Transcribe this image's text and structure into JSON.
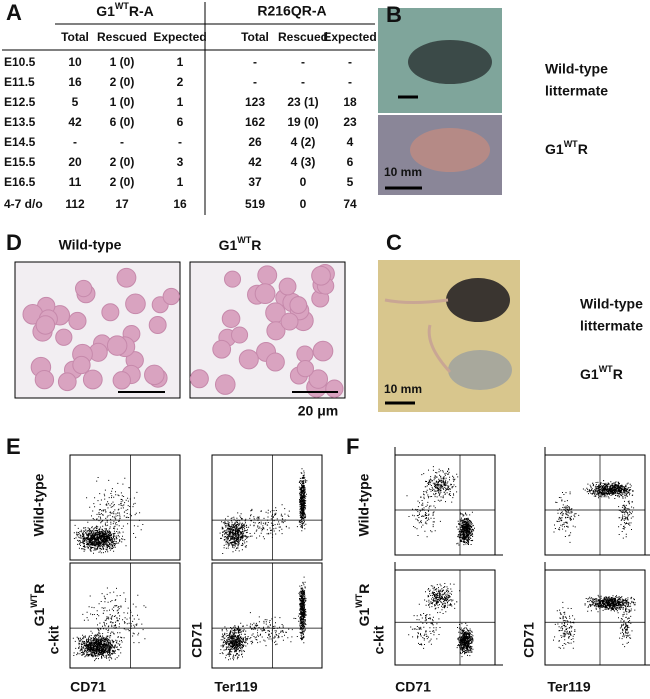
{
  "panel_letters": [
    "A",
    "B",
    "C",
    "D",
    "E",
    "F"
  ],
  "table": {
    "group_1": {
      "base": "G1",
      "sup": "WT",
      "rest": "R-A"
    },
    "group_2": "R216QR-A",
    "columns": [
      "Total",
      "Rescued",
      "Expected",
      "Total",
      "Rescued",
      "Expected"
    ],
    "rows": [
      [
        "E10.5",
        "10",
        "1 (0)",
        "1",
        "-",
        "-",
        "-"
      ],
      [
        "E11.5",
        "16",
        "2 (0)",
        "2",
        "-",
        "-",
        "-"
      ],
      [
        "E12.5",
        "5",
        "1 (0)",
        "1",
        "123",
        "23 (1)",
        "18"
      ],
      [
        "E13.5",
        "42",
        "6 (0)",
        "6",
        "162",
        "19 (0)",
        "23"
      ],
      [
        "E14.5",
        "-",
        "-",
        "-",
        "26",
        "4 (2)",
        "4"
      ],
      [
        "E15.5",
        "20",
        "2 (0)",
        "3",
        "42",
        "4 (3)",
        "6"
      ],
      [
        "E16.5",
        "11",
        "2 (0)",
        "1",
        "37",
        "0",
        "5"
      ],
      [
        "4-7 d/o",
        "112",
        "17",
        "16",
        "519",
        "0",
        "74"
      ]
    ]
  },
  "panel_b": {
    "wild_type": [
      "Wild-type",
      "littermate"
    ],
    "mutant": {
      "base": "G1",
      "sup": "WT",
      "rest": "R"
    },
    "scale": "10 mm"
  },
  "panel_c": {
    "wild_type": [
      "Wild-type",
      "littermate"
    ],
    "mutant": {
      "base": "G1",
      "sup": "WT",
      "rest": "R"
    },
    "scale": "10 mm"
  },
  "panel_d": {
    "wild_type": "Wild-type",
    "mutant": {
      "base": "G1",
      "sup": "WT",
      "rest": "R"
    },
    "scale": "20 μm"
  },
  "panel_e": {
    "row_1": "Wild-type",
    "row_2": {
      "base": "G1",
      "sup": "WT",
      "rest": "R"
    },
    "y_left": "c-kit",
    "x_left": "CD71",
    "y_right": "CD71",
    "x_right": "Ter119"
  },
  "panel_f": {
    "row_1": "Wild-type",
    "row_2": {
      "base": "G1",
      "sup": "WT",
      "rest": "R"
    },
    "y_left": "c-kit",
    "x_left": "CD71",
    "y_right": "CD71",
    "x_right": "Ter119"
  }
}
